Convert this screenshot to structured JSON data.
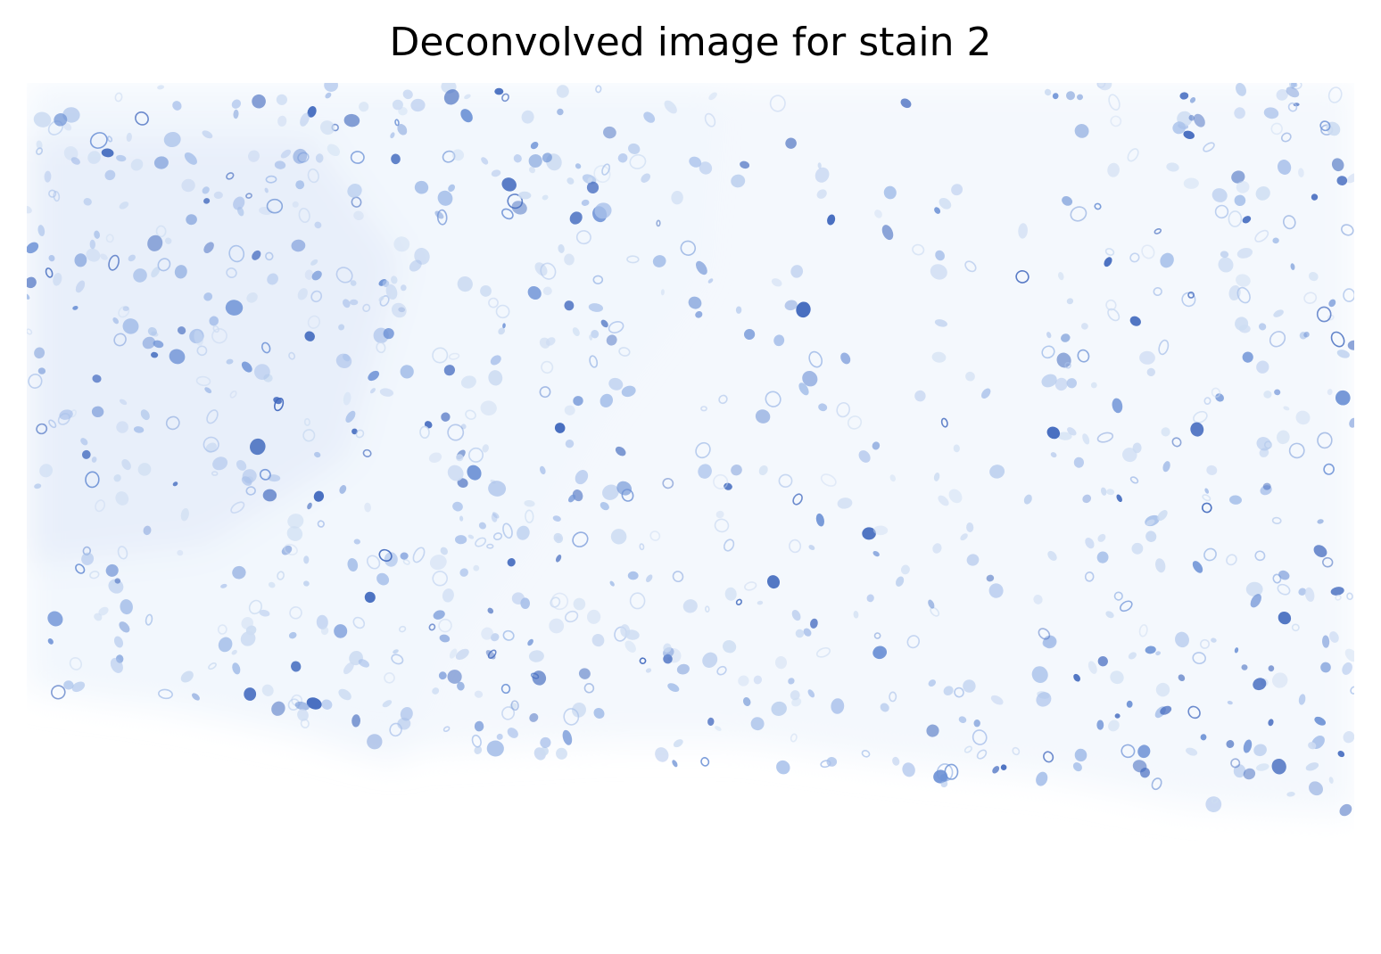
{
  "figure": {
    "title": "Deconvolved image for stain 2"
  },
  "image": {
    "description_icon": "tissue-micrograph-image",
    "colors": {
      "background": "#ffffff",
      "tissue_tint": "#eef3fb",
      "nucleus_light": "#cddcf2",
      "nucleus_mid": "#a9c1ea",
      "nucleus_dark": "#6f93d6",
      "nucleus_darkest": "#3f67bd"
    }
  }
}
